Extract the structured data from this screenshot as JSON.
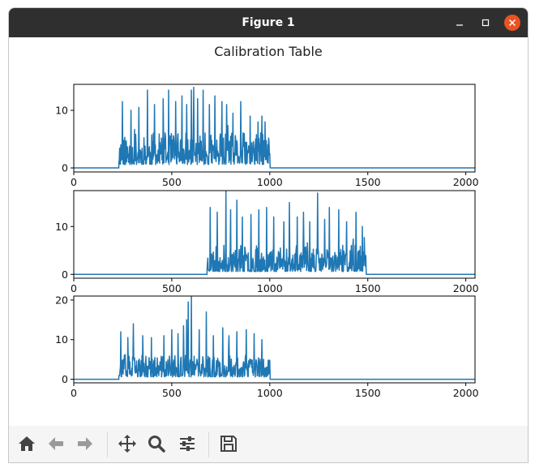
{
  "window": {
    "title": "Figure 1"
  },
  "colors": {
    "line": "#1f77b4",
    "titlebar": "#2f2f2f",
    "close": "#e95420",
    "icon": "#444444",
    "icon_disabled": "#9a9a9a"
  },
  "toolbar": {
    "buttons": [
      {
        "name": "home-button",
        "icon": "home-icon"
      },
      {
        "name": "back-button",
        "icon": "arrow-left-icon"
      },
      {
        "name": "forward-button",
        "icon": "arrow-right-icon"
      },
      {
        "name": "pan-button",
        "icon": "move-icon"
      },
      {
        "name": "zoom-button",
        "icon": "magnifier-icon"
      },
      {
        "name": "configure-subplots-button",
        "icon": "sliders-icon"
      },
      {
        "name": "save-button",
        "icon": "floppy-disk-icon"
      }
    ]
  },
  "chart_data": {
    "type": "line",
    "title": "Calibration Table",
    "subplots": [
      {
        "xlim": [
          0,
          2047
        ],
        "ylim": [
          -0.7,
          14.5
        ],
        "xticks": [
          0,
          500,
          1000,
          1500,
          2000
        ],
        "yticks": [
          0,
          10
        ],
        "active_range": [
          230,
          1000
        ],
        "peaks": [
          [
            246,
            11.5
          ],
          [
            290,
            10.0
          ],
          [
            330,
            10.5
          ],
          [
            375,
            13.5
          ],
          [
            410,
            11.0
          ],
          [
            455,
            12.0
          ],
          [
            485,
            13.5
          ],
          [
            520,
            11.5
          ],
          [
            550,
            12.5
          ],
          [
            575,
            11.0
          ],
          [
            600,
            13.5
          ],
          [
            610,
            14.0
          ],
          [
            630,
            12.0
          ],
          [
            660,
            13.5
          ],
          [
            690,
            11.0
          ],
          [
            720,
            12.5
          ],
          [
            755,
            11.5
          ],
          [
            780,
            11.0
          ],
          [
            810,
            9.5
          ],
          [
            850,
            11.5
          ],
          [
            900,
            9.0
          ],
          [
            940,
            8.0
          ],
          [
            960,
            9.0
          ],
          [
            975,
            8.0
          ]
        ],
        "seed": 11
      },
      {
        "xlim": [
          0,
          2047
        ],
        "ylim": [
          -0.8,
          17.5
        ],
        "xticks": [
          0,
          500,
          1000,
          1500,
          2000
        ],
        "yticks": [
          0,
          10
        ],
        "active_range": [
          680,
          1490
        ],
        "peaks": [
          [
            695,
            14.0
          ],
          [
            730,
            13.0
          ],
          [
            775,
            17.5
          ],
          [
            800,
            13.5
          ],
          [
            830,
            15.5
          ],
          [
            860,
            12.0
          ],
          [
            905,
            12.5
          ],
          [
            945,
            13.5
          ],
          [
            985,
            14.0
          ],
          [
            1020,
            12.0
          ],
          [
            1070,
            11.0
          ],
          [
            1100,
            15.0
          ],
          [
            1140,
            12.0
          ],
          [
            1170,
            13.0
          ],
          [
            1205,
            11.0
          ],
          [
            1245,
            17.0
          ],
          [
            1280,
            11.5
          ],
          [
            1305,
            14.0
          ],
          [
            1350,
            13.5
          ],
          [
            1390,
            11.0
          ],
          [
            1440,
            13.0
          ],
          [
            1470,
            10.0
          ]
        ],
        "seed": 23
      },
      {
        "xlim": [
          0,
          2047
        ],
        "ylim": [
          -0.9,
          21.0
        ],
        "xticks": [
          0,
          500,
          1000,
          1500,
          2000
        ],
        "yticks": [
          0,
          10,
          20
        ],
        "active_range": [
          230,
          1000
        ],
        "peaks": [
          [
            240,
            12.0
          ],
          [
            275,
            10.5
          ],
          [
            305,
            14.0
          ],
          [
            350,
            11.0
          ],
          [
            395,
            10.5
          ],
          [
            460,
            11.0
          ],
          [
            500,
            12.5
          ],
          [
            530,
            11.5
          ],
          [
            560,
            13.5
          ],
          [
            575,
            15.0
          ],
          [
            585,
            19.5
          ],
          [
            600,
            21.0
          ],
          [
            640,
            12.5
          ],
          [
            675,
            17.0
          ],
          [
            710,
            11.0
          ],
          [
            760,
            13.0
          ],
          [
            790,
            11.0
          ],
          [
            830,
            12.0
          ],
          [
            880,
            12.5
          ],
          [
            920,
            11.5
          ],
          [
            960,
            10.0
          ]
        ],
        "seed": 37
      }
    ]
  }
}
